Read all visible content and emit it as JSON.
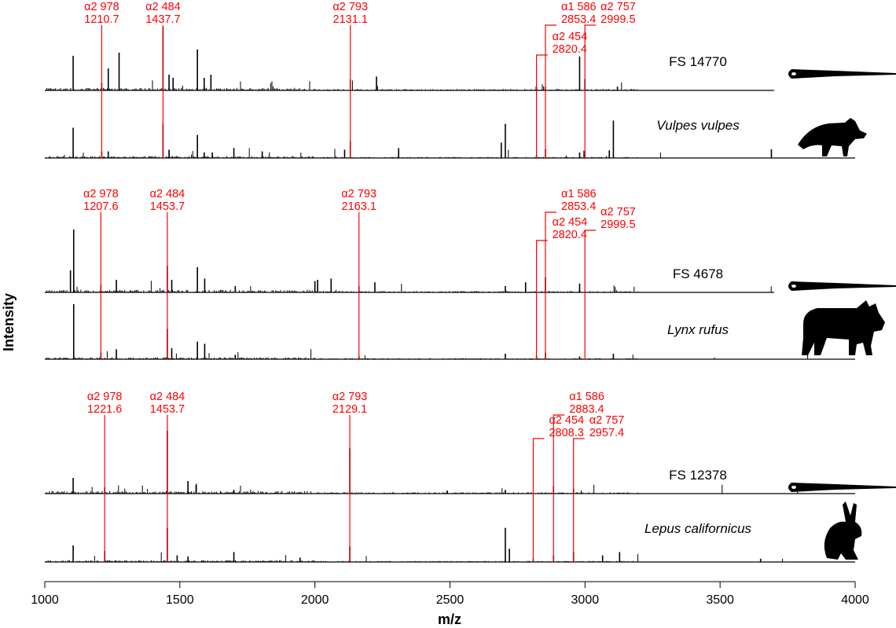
{
  "chart_data": {
    "type": "line",
    "title": "",
    "xlabel": "m/z",
    "ylabel": "Intensity",
    "xlim": [
      1000,
      4000
    ],
    "x_ticks": [
      1000,
      1500,
      2000,
      2500,
      3000,
      3500,
      4000
    ],
    "x_tick_labels": [
      "1000",
      "1500",
      "2000",
      "2500",
      "3000",
      "3500",
      "4000"
    ],
    "line_color": "#000000",
    "annotation_color": "#ff0000",
    "panels": [
      {
        "id": "panel-1",
        "sample_label": "FS 14770",
        "reference_label": "Vulpes vulpes",
        "sample_icon": "bone-tool-icon",
        "reference_icon": "fox-icon",
        "sample_xmax": 3700,
        "reference_xmax": 4000,
        "annotations": [
          {
            "peptide": "α2 978",
            "mz": 1210.7,
            "label": "1210.7"
          },
          {
            "peptide": "α2 484",
            "mz": 1437.7,
            "label": "1437.7"
          },
          {
            "peptide": "α2 793",
            "mz": 2131.1,
            "label": "2131.1"
          },
          {
            "peptide": "α2 454",
            "mz": 2820.4,
            "label": "2820.4"
          },
          {
            "peptide": "α1 586",
            "mz": 2853.4,
            "label": "2853.4"
          },
          {
            "peptide": "α2 757",
            "mz": 2999.5,
            "label": "2999.5"
          }
        ],
        "sample_peaks": [
          {
            "mz": 1105,
            "rel": 0.55
          },
          {
            "mz": 1210.7,
            "rel": 0.12
          },
          {
            "mz": 1235,
            "rel": 0.35
          },
          {
            "mz": 1275,
            "rel": 0.6
          },
          {
            "mz": 1437.7,
            "rel": 1.0
          },
          {
            "mz": 1460,
            "rel": 0.25
          },
          {
            "mz": 1475,
            "rel": 0.2
          },
          {
            "mz": 1565,
            "rel": 0.65
          },
          {
            "mz": 1590,
            "rel": 0.2
          },
          {
            "mz": 1615,
            "rel": 0.25
          },
          {
            "mz": 2131.1,
            "rel": 0.18
          },
          {
            "mz": 2228,
            "rel": 0.22
          },
          {
            "mz": 2820.4,
            "rel": 0.05
          },
          {
            "mz": 2853.4,
            "rel": 0.06
          },
          {
            "mz": 2980,
            "rel": 0.54
          },
          {
            "mz": 2999.5,
            "rel": 0.18
          },
          {
            "mz": 3120,
            "rel": 0.06
          }
        ],
        "reference_peaks": [
          {
            "mz": 1105,
            "rel": 0.55
          },
          {
            "mz": 1210.7,
            "rel": 0.12
          },
          {
            "mz": 1235,
            "rel": 0.12
          },
          {
            "mz": 1437.7,
            "rel": 0.62
          },
          {
            "mz": 1460,
            "rel": 0.15
          },
          {
            "mz": 1565,
            "rel": 0.42
          },
          {
            "mz": 1590,
            "rel": 0.1
          },
          {
            "mz": 1620,
            "rel": 0.1
          },
          {
            "mz": 1700,
            "rel": 0.18
          },
          {
            "mz": 1805,
            "rel": 0.12
          },
          {
            "mz": 2110,
            "rel": 0.15
          },
          {
            "mz": 2131.1,
            "rel": 0.3
          },
          {
            "mz": 2310,
            "rel": 0.18
          },
          {
            "mz": 2690,
            "rel": 0.28
          },
          {
            "mz": 2705,
            "rel": 0.62
          },
          {
            "mz": 2820.4,
            "rel": 0.06
          },
          {
            "mz": 2853.4,
            "rel": 0.16
          },
          {
            "mz": 2980,
            "rel": 0.1
          },
          {
            "mz": 2999.5,
            "rel": 0.12
          },
          {
            "mz": 3090,
            "rel": 0.14
          },
          {
            "mz": 3105,
            "rel": 0.68
          },
          {
            "mz": 3690,
            "rel": 0.16
          }
        ]
      },
      {
        "id": "panel-2",
        "sample_label": "FS 4678",
        "reference_label": "Lynx rufus",
        "sample_icon": "bone-tool-icon",
        "reference_icon": "bobcat-icon",
        "sample_xmax": 3700,
        "reference_xmax": 4000,
        "annotations": [
          {
            "peptide": "α2 978",
            "mz": 1207.6,
            "label": "1207.6"
          },
          {
            "peptide": "α2 484",
            "mz": 1453.7,
            "label": "1453.7"
          },
          {
            "peptide": "α2 793",
            "mz": 2163.1,
            "label": "2163.1"
          },
          {
            "peptide": "α2 454",
            "mz": 2820.4,
            "label": "2820.4"
          },
          {
            "peptide": "α1 586",
            "mz": 2853.4,
            "label": "2853.4"
          },
          {
            "peptide": "α2 757",
            "mz": 2999.5,
            "label": "2999.5"
          }
        ],
        "sample_peaks": [
          {
            "mz": 1095,
            "rel": 0.35
          },
          {
            "mz": 1107,
            "rel": 1.0
          },
          {
            "mz": 1207.6,
            "rel": 0.12
          },
          {
            "mz": 1265,
            "rel": 0.2
          },
          {
            "mz": 1453.7,
            "rel": 0.42
          },
          {
            "mz": 1470,
            "rel": 0.2
          },
          {
            "mz": 1565,
            "rel": 0.4
          },
          {
            "mz": 1592,
            "rel": 0.22
          },
          {
            "mz": 1705,
            "rel": 0.1
          },
          {
            "mz": 2000,
            "rel": 0.18
          },
          {
            "mz": 2010,
            "rel": 0.2
          },
          {
            "mz": 2060,
            "rel": 0.22
          },
          {
            "mz": 2163.1,
            "rel": 0.1
          },
          {
            "mz": 2222,
            "rel": 0.16
          },
          {
            "mz": 2705,
            "rel": 0.1
          },
          {
            "mz": 2780,
            "rel": 0.16
          },
          {
            "mz": 2853.4,
            "rel": 0.24
          },
          {
            "mz": 2980,
            "rel": 0.14
          }
        ],
        "reference_peaks": [
          {
            "mz": 1107,
            "rel": 1.0
          },
          {
            "mz": 1207.6,
            "rel": 0.12
          },
          {
            "mz": 1265,
            "rel": 0.18
          },
          {
            "mz": 1453.7,
            "rel": 0.55
          },
          {
            "mz": 1470,
            "rel": 0.2
          },
          {
            "mz": 1565,
            "rel": 0.32
          },
          {
            "mz": 1592,
            "rel": 0.28
          },
          {
            "mz": 1705,
            "rel": 0.08
          },
          {
            "mz": 2163.1,
            "rel": 0.06
          },
          {
            "mz": 2705,
            "rel": 0.1
          },
          {
            "mz": 2820.4,
            "rel": 0.06
          },
          {
            "mz": 2853.4,
            "rel": 0.12
          },
          {
            "mz": 2980,
            "rel": 0.05
          },
          {
            "mz": 3105,
            "rel": 0.1
          }
        ]
      },
      {
        "id": "panel-3",
        "sample_label": "FS 12378",
        "reference_label": "Lepus californicus",
        "sample_icon": "bone-tool-icon",
        "reference_icon": "hare-icon",
        "sample_xmax": 4000,
        "reference_xmax": 4000,
        "annotations": [
          {
            "peptide": "α2 978",
            "mz": 1221.6,
            "label": "1221.6"
          },
          {
            "peptide": "α2 484",
            "mz": 1453.7,
            "label": "1453.7"
          },
          {
            "peptide": "α2 793",
            "mz": 2129.1,
            "label": "2129.1"
          },
          {
            "peptide": "α2 454",
            "mz": 2808.3,
            "label": "2808.3"
          },
          {
            "peptide": "α1 586",
            "mz": 2883.4,
            "label": "2883.4"
          },
          {
            "peptide": "α2 757",
            "mz": 2957.4,
            "label": "2957.4"
          }
        ],
        "sample_peaks": [
          {
            "mz": 1105,
            "rel": 0.25
          },
          {
            "mz": 1221.6,
            "rel": 0.1
          },
          {
            "mz": 1453.7,
            "rel": 1.0
          },
          {
            "mz": 1530,
            "rel": 0.2
          },
          {
            "mz": 1560,
            "rel": 0.14
          },
          {
            "mz": 1700,
            "rel": 0.06
          },
          {
            "mz": 2129.1,
            "rel": 0.72
          },
          {
            "mz": 2490,
            "rel": 0.05
          },
          {
            "mz": 2705,
            "rel": 0.06
          },
          {
            "mz": 2883.4,
            "rel": 0.12
          },
          {
            "mz": 2957.4,
            "rel": 0.08
          }
        ],
        "reference_peaks": [
          {
            "mz": 1105,
            "rel": 0.3
          },
          {
            "mz": 1221.6,
            "rel": 0.2
          },
          {
            "mz": 1453.7,
            "rel": 0.62
          },
          {
            "mz": 1490,
            "rel": 0.12
          },
          {
            "mz": 1530,
            "rel": 0.1
          },
          {
            "mz": 1700,
            "rel": 0.18
          },
          {
            "mz": 1945,
            "rel": 0.08
          },
          {
            "mz": 2129.1,
            "rel": 0.28
          },
          {
            "mz": 2705,
            "rel": 0.62
          },
          {
            "mz": 2720,
            "rel": 0.24
          },
          {
            "mz": 2808.3,
            "rel": 0.05
          },
          {
            "mz": 2883.4,
            "rel": 0.12
          },
          {
            "mz": 2957.4,
            "rel": 0.18
          },
          {
            "mz": 3065,
            "rel": 0.12
          },
          {
            "mz": 3128,
            "rel": 0.18
          },
          {
            "mz": 3650,
            "rel": 0.06
          }
        ]
      }
    ]
  }
}
